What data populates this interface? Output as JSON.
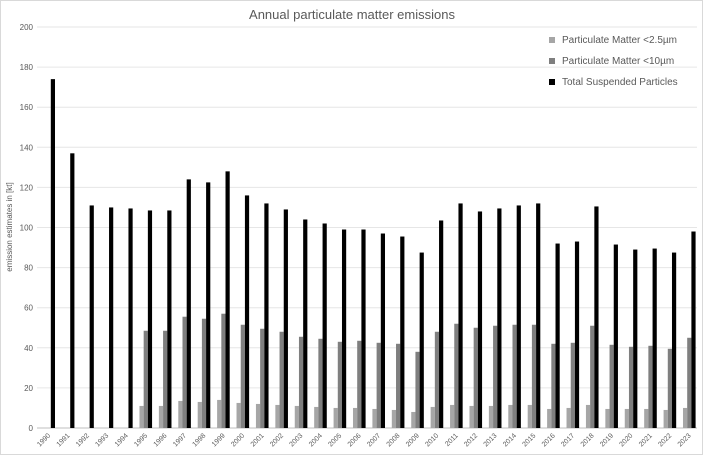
{
  "chart_data": {
    "type": "bar",
    "title": "Annual particulate matter emissions",
    "xlabel": "",
    "ylabel": "emission estimates in [kt]",
    "ylim": [
      0,
      200
    ],
    "yticks": [
      0,
      20,
      40,
      60,
      80,
      100,
      120,
      140,
      160,
      180,
      200
    ],
    "grid": true,
    "legend_position": "top-right",
    "categories": [
      "1990",
      "1991",
      "1992",
      "1993",
      "1994",
      "1995",
      "1996",
      "1997",
      "1998",
      "1999",
      "2000",
      "2001",
      "2002",
      "2003",
      "2004",
      "2005",
      "2006",
      "2007",
      "2008",
      "2009",
      "2010",
      "2011",
      "2012",
      "2013",
      "2014",
      "2015",
      "2016",
      "2017",
      "2018",
      "2019",
      "2020",
      "2021",
      "2022",
      "2023"
    ],
    "series": [
      {
        "name": "Particulate Matter <2.5µm",
        "color": "#a6a6a6",
        "values": [
          null,
          null,
          null,
          null,
          null,
          11,
          11,
          13.5,
          13,
          14,
          12.5,
          12,
          11.5,
          11,
          10.5,
          10,
          10,
          9.5,
          9,
          8,
          10.5,
          11.5,
          11,
          11,
          11.5,
          11.5,
          9.5,
          10,
          11.5,
          9.5,
          9.5,
          9.5,
          9,
          10
        ]
      },
      {
        "name": "Particulate Matter <10µm",
        "color": "#7f7f7f",
        "values": [
          null,
          null,
          null,
          null,
          null,
          48.5,
          48.5,
          55.5,
          54.5,
          57,
          51.5,
          49.5,
          48,
          45.5,
          44.5,
          43,
          43.5,
          42.5,
          42,
          38,
          48,
          52,
          50,
          51,
          51.5,
          51.5,
          42,
          42.5,
          51,
          41.5,
          40.5,
          41,
          39.5,
          45
        ]
      },
      {
        "name": "Total Suspended Particles",
        "color": "#000000",
        "values": [
          174,
          137,
          111,
          110,
          109.5,
          108.5,
          108.5,
          124,
          122.5,
          128,
          116,
          112,
          109,
          104,
          102,
          99,
          99,
          97,
          95.5,
          87.5,
          103.5,
          112,
          108,
          109.5,
          111,
          112,
          92,
          93,
          110.5,
          91.5,
          89,
          89.5,
          87.5,
          98
        ]
      }
    ]
  }
}
